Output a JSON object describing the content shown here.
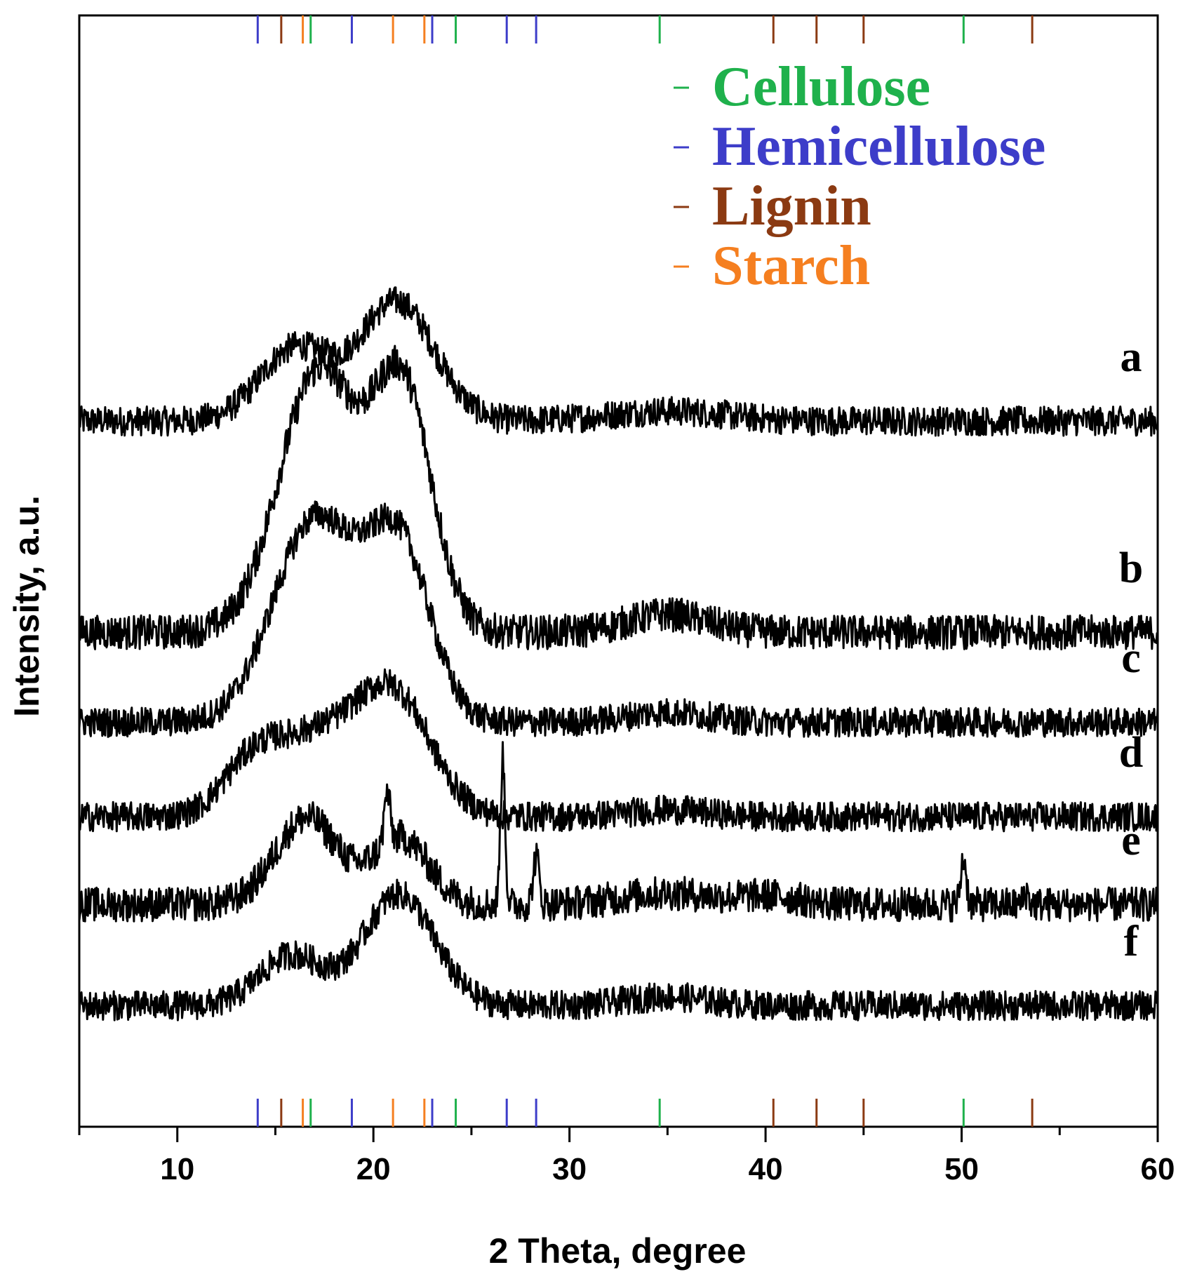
{
  "chart_data": {
    "type": "line",
    "xlabel": "2 Theta, degree",
    "ylabel": "Intensity, a.u.",
    "xlim": [
      5,
      60
    ],
    "ylim": [
      0,
      1
    ],
    "xticks": [
      10,
      20,
      30,
      40,
      50,
      60
    ],
    "xtick_labels": [
      "10",
      "20",
      "30",
      "40",
      "50",
      "60"
    ],
    "minor_xticks": [
      5,
      15,
      25,
      35,
      45,
      55
    ],
    "legend": {
      "position": "top-right",
      "entries": [
        {
          "name": "Cellulose",
          "color": "#1fb14c"
        },
        {
          "name": "Hemicellulose",
          "color": "#3d3dc9"
        },
        {
          "name": "Lignin",
          "color": "#8b3a12"
        },
        {
          "name": "Starch",
          "color": "#f57f20"
        }
      ]
    },
    "reference_markers": [
      {
        "component": "Hemicellulose",
        "color": "#3d3dc9",
        "positions": [
          14.1,
          18.9,
          23.0,
          26.8,
          28.3
        ]
      },
      {
        "component": "Lignin",
        "color": "#8b3a12",
        "positions": [
          15.3,
          40.4,
          42.6,
          45.0,
          53.6
        ]
      },
      {
        "component": "Starch",
        "color": "#f57f20",
        "positions": [
          16.4,
          21.0,
          22.6
        ]
      },
      {
        "component": "Cellulose",
        "color": "#1fb14c",
        "positions": [
          16.8,
          24.2,
          34.6,
          50.1
        ]
      }
    ],
    "series": [
      {
        "name": "a",
        "baseline": 0.635,
        "noise": 0.006,
        "peaks": [
          [
            16.0,
            0.065,
            1.8
          ],
          [
            21.2,
            0.107,
            1.9
          ],
          [
            35.0,
            0.009,
            3.0
          ]
        ],
        "sharp_peaks": []
      },
      {
        "name": "b",
        "baseline": 0.445,
        "noise": 0.007,
        "peaks": [
          [
            17.2,
            0.235,
            2.0
          ],
          [
            21.5,
            0.215,
            1.5
          ],
          [
            35.0,
            0.016,
            2.0
          ]
        ],
        "sharp_peaks": []
      },
      {
        "name": "c",
        "baseline": 0.364,
        "noise": 0.006,
        "peaks": [
          [
            17.0,
            0.182,
            2.1
          ],
          [
            21.3,
            0.156,
            1.6
          ],
          [
            35.0,
            0.009,
            2.0
          ]
        ],
        "sharp_peaks": []
      },
      {
        "name": "d",
        "baseline": 0.279,
        "noise": 0.006,
        "peaks": [
          [
            13.8,
            0.045,
            1.5
          ],
          [
            17.0,
            0.065,
            2.0
          ],
          [
            21.0,
            0.11,
            1.9
          ],
          [
            35.0,
            0.006,
            2.0
          ]
        ],
        "sharp_peaks": []
      },
      {
        "name": "e",
        "baseline": 0.2,
        "noise": 0.007,
        "peaks": [
          [
            16.6,
            0.078,
            1.6
          ],
          [
            21.4,
            0.06,
            1.4
          ],
          [
            35.0,
            0.01,
            2.5
          ],
          [
            40.3,
            0.007,
            1.5
          ]
        ],
        "sharp_peaks": [
          [
            20.7,
            0.045,
            0.15
          ],
          [
            26.6,
            0.131,
            0.12
          ],
          [
            28.3,
            0.043,
            0.15
          ],
          [
            50.1,
            0.042,
            0.14
          ],
          [
            53.3,
            0.011,
            0.12
          ]
        ]
      },
      {
        "name": "f",
        "baseline": 0.109,
        "noise": 0.006,
        "peaks": [
          [
            15.8,
            0.045,
            1.6
          ],
          [
            21.3,
            0.1,
            1.8
          ],
          [
            35.0,
            0.008,
            2.0
          ]
        ],
        "sharp_peaks": []
      }
    ]
  }
}
